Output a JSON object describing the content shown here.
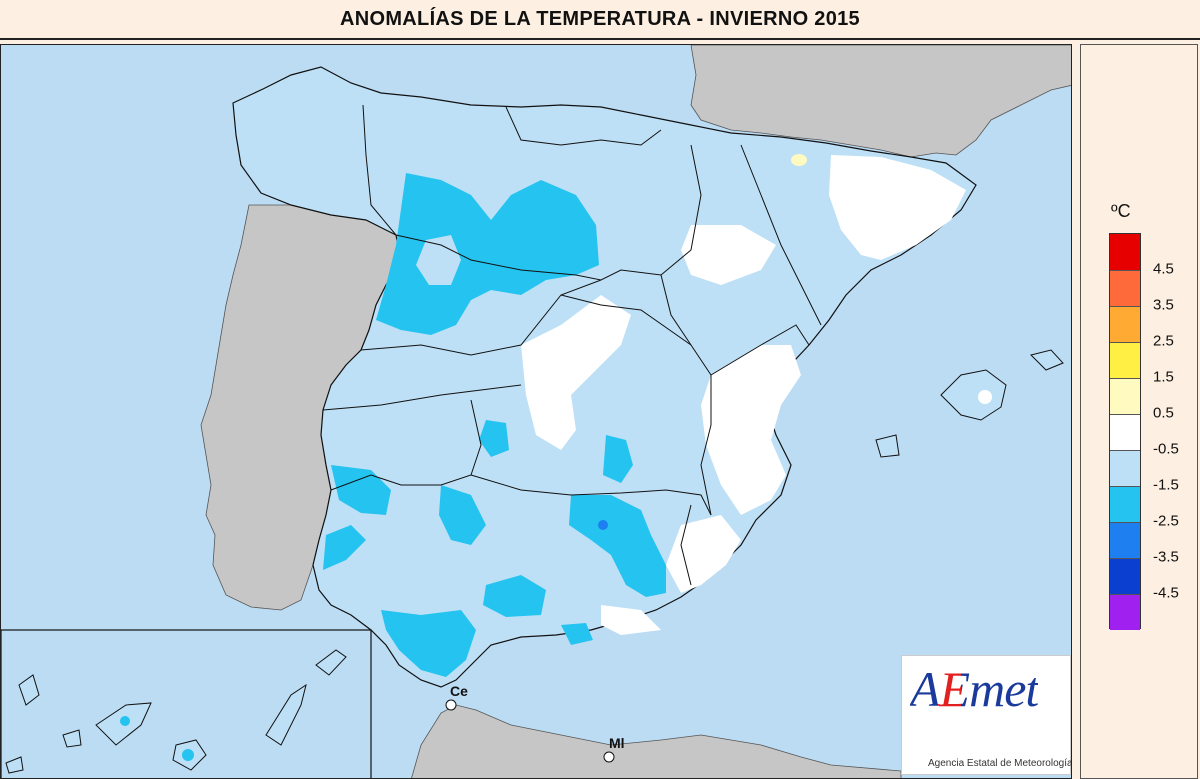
{
  "title": "ANOMALÍAS DE LA TEMPERATURA - INVIERNO 2015",
  "legend": {
    "unit": "ºC",
    "tick_labels": [
      "4.5",
      "3.5",
      "2.5",
      "1.5",
      "0.5",
      "-0.5",
      "-1.5",
      "-2.5",
      "-3.5",
      "-4.5"
    ],
    "colors": [
      "#e60000",
      "#ff6a3a",
      "#ffaa33",
      "#ffee44",
      "#fffbc0",
      "#ffffff",
      "#bde0f6",
      "#24c3f0",
      "#1e80f0",
      "#0a3fd0",
      "#a020f0"
    ]
  },
  "map": {
    "sea_color": "#bcdcf4",
    "land_outside_color": "#c6c6c6",
    "labels": {
      "ceuta": "Ce",
      "melilla": "Ml"
    }
  },
  "logo": {
    "text": "AEmet",
    "subtitle": "Agencia Estatal de Meteorología"
  }
}
